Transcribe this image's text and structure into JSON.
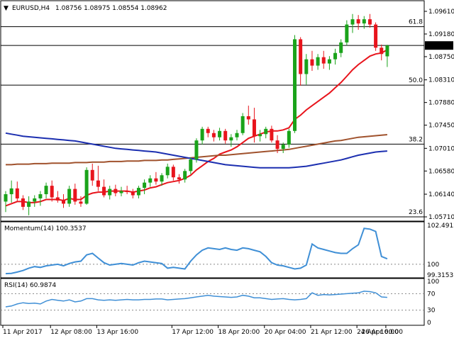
{
  "header": {
    "symbol_label": "EURUSD,H4",
    "ohlc_text": "1.08756 1.08975 1.08554 1.08962"
  },
  "chart_data": [
    {
      "type": "candlestick",
      "title": "EURUSD,H4",
      "ohlc": {
        "open": 1.08756,
        "high": 1.08975,
        "low": 1.08554,
        "close": 1.08962
      },
      "current_price": 1.08962,
      "ylim": [
        1.0571,
        1.0961
      ],
      "y_ticks": [
        "1.09610",
        "1.09180",
        "1.08750",
        "1.08310",
        "1.07880",
        "1.07450",
        "1.07010",
        "1.06580",
        "1.06140",
        "1.05710"
      ],
      "x_ticks": [
        "11 Apr 2017",
        "12 Apr 08:00",
        "13 Apr 16:00",
        "17 Apr 12:00",
        "18 Apr 20:00",
        "20 Apr 04:00",
        "21 Apr 12:00",
        "24 Apr 16:00",
        "26 Apr 00:00"
      ],
      "fib_levels": [
        {
          "label": "61.8",
          "price": 1.0932
        },
        {
          "label": "50.0",
          "price": 1.0821
        },
        {
          "label": "38.2",
          "price": 1.0709
        },
        {
          "label": "23.6",
          "price": 1.0571
        }
      ],
      "candles": [
        [
          1.06,
          1.062,
          1.058,
          1.0614
        ],
        [
          1.0614,
          1.064,
          1.0598,
          1.0625
        ],
        [
          1.0625,
          1.0638,
          1.06,
          1.0606
        ],
        [
          1.0606,
          1.0612,
          1.0584,
          1.059
        ],
        [
          1.059,
          1.061,
          1.0574,
          1.06
        ],
        [
          1.06,
          1.0612,
          1.059,
          1.0606
        ],
        [
          1.0606,
          1.062,
          1.0592,
          1.0614
        ],
        [
          1.0614,
          1.0636,
          1.0606,
          1.063
        ],
        [
          1.063,
          1.064,
          1.06,
          1.0608
        ],
        [
          1.0608,
          1.062,
          1.0598,
          1.0602
        ],
        [
          1.0602,
          1.0614,
          1.0588,
          1.0596
        ],
        [
          1.0596,
          1.063,
          1.059,
          1.0624
        ],
        [
          1.0624,
          1.0634,
          1.0594,
          1.06
        ],
        [
          1.06,
          1.061,
          1.059,
          1.0596
        ],
        [
          1.0596,
          1.0665,
          1.0594,
          1.066
        ],
        [
          1.066,
          1.0672,
          1.063,
          1.064
        ],
        [
          1.064,
          1.0668,
          1.062,
          1.0628
        ],
        [
          1.0628,
          1.0642,
          1.0608,
          1.0612
        ],
        [
          1.0612,
          1.063,
          1.0604,
          1.0624
        ],
        [
          1.0624,
          1.0632,
          1.061,
          1.0616
        ],
        [
          1.0616,
          1.0628,
          1.061,
          1.062
        ],
        [
          1.062,
          1.063,
          1.0614,
          1.0618
        ],
        [
          1.0618,
          1.0624,
          1.0606,
          1.0612
        ],
        [
          1.0612,
          1.063,
          1.0606,
          1.0626
        ],
        [
          1.0626,
          1.0642,
          1.0614,
          1.0636
        ],
        [
          1.0636,
          1.065,
          1.0628,
          1.0644
        ],
        [
          1.0644,
          1.0656,
          1.0632,
          1.0638
        ],
        [
          1.0638,
          1.0654,
          1.063,
          1.065
        ],
        [
          1.065,
          1.0672,
          1.0644,
          1.0666
        ],
        [
          1.0666,
          1.067,
          1.064,
          1.0646
        ],
        [
          1.0646,
          1.0652,
          1.0634,
          1.0642
        ],
        [
          1.0642,
          1.0662,
          1.0636,
          1.0658
        ],
        [
          1.0658,
          1.0684,
          1.0652,
          1.068
        ],
        [
          1.068,
          1.072,
          1.0674,
          1.0716
        ],
        [
          1.0716,
          1.0742,
          1.0708,
          1.0738
        ],
        [
          1.0738,
          1.0742,
          1.0722,
          1.073
        ],
        [
          1.073,
          1.0736,
          1.0714,
          1.0722
        ],
        [
          1.0722,
          1.074,
          1.0716,
          1.0734
        ],
        [
          1.0734,
          1.0738,
          1.071,
          1.0716
        ],
        [
          1.0716,
          1.0728,
          1.0704,
          1.0722
        ],
        [
          1.0722,
          1.0736,
          1.0716,
          1.073
        ],
        [
          1.073,
          1.0768,
          1.0726,
          1.0762
        ],
        [
          1.0762,
          1.0782,
          1.0746,
          1.0756
        ],
        [
          1.0756,
          1.0778,
          1.0712,
          1.0724
        ],
        [
          1.0724,
          1.0736,
          1.0714,
          1.0728
        ],
        [
          1.0728,
          1.0742,
          1.072,
          1.0738
        ],
        [
          1.0738,
          1.0744,
          1.0712,
          1.0716
        ],
        [
          1.0716,
          1.0726,
          1.0692,
          1.07
        ],
        [
          1.07,
          1.0712,
          1.0692,
          1.0708
        ],
        [
          1.0708,
          1.0738,
          1.0702,
          1.0734
        ],
        [
          1.0734,
          1.0916,
          1.073,
          1.0908
        ],
        [
          1.0908,
          1.0912,
          1.082,
          1.0842
        ],
        [
          1.0842,
          1.088,
          1.0822,
          1.087
        ],
        [
          1.087,
          1.0886,
          1.0848,
          1.0858
        ],
        [
          1.0858,
          1.088,
          1.085,
          1.0874
        ],
        [
          1.0874,
          1.0886,
          1.0852,
          1.0862
        ],
        [
          1.0862,
          1.0876,
          1.085,
          1.087
        ],
        [
          1.087,
          1.089,
          1.086,
          1.0882
        ],
        [
          1.0882,
          1.0908,
          1.0874,
          1.0902
        ],
        [
          1.0902,
          1.0944,
          1.0896,
          1.0936
        ],
        [
          1.0936,
          1.0956,
          1.092,
          1.0946
        ],
        [
          1.0946,
          1.0954,
          1.0926,
          1.0938
        ],
        [
          1.0938,
          1.0952,
          1.0928,
          1.0946
        ],
        [
          1.0946,
          1.0956,
          1.093,
          1.0936
        ],
        [
          1.0936,
          1.094,
          1.0886,
          1.0892
        ],
        [
          1.0892,
          1.0898,
          1.0868,
          1.088
        ],
        [
          1.08756,
          1.08975,
          1.08554,
          1.08962
        ]
      ],
      "series": [
        {
          "type": "line",
          "color": "#e8141c",
          "values": [
            1.0592,
            1.0596,
            1.06,
            1.06,
            1.0598,
            1.0598,
            1.06,
            1.0604,
            1.0604,
            1.0604,
            1.0602,
            1.0606,
            1.0604,
            1.0604,
            1.0612,
            1.0616,
            1.0618,
            1.0618,
            1.062,
            1.062,
            1.062,
            1.062,
            1.0618,
            1.062,
            1.0622,
            1.0626,
            1.0628,
            1.0632,
            1.0636,
            1.0638,
            1.064,
            1.0644,
            1.065,
            1.066,
            1.0668,
            1.0676,
            1.0682,
            1.069,
            1.0694,
            1.0698,
            1.0704,
            1.0712,
            1.072,
            1.0724,
            1.0728,
            1.0732,
            1.0734,
            1.0734,
            1.0736,
            1.074,
            1.0756,
            1.0764,
            1.0774,
            1.0782,
            1.079,
            1.0798,
            1.0806,
            1.0816,
            1.0826,
            1.0838,
            1.085,
            1.086,
            1.0868,
            1.0876,
            1.088,
            1.0882,
            1.0888
          ]
        },
        {
          "type": "line",
          "color": "#a0522d",
          "values": [
            1.067,
            1.067,
            1.0671,
            1.0671,
            1.0671,
            1.0672,
            1.0672,
            1.0672,
            1.0673,
            1.0673,
            1.0673,
            1.0673,
            1.0674,
            1.0674,
            1.0674,
            1.0675,
            1.0675,
            1.0675,
            1.0676,
            1.0676,
            1.0676,
            1.0677,
            1.0677,
            1.0677,
            1.0678,
            1.0678,
            1.0678,
            1.0679,
            1.0679,
            1.068,
            1.0681,
            1.0682,
            1.0683,
            1.0684,
            1.0685,
            1.0686,
            1.0687,
            1.0688,
            1.0688,
            1.0689,
            1.069,
            1.0691,
            1.0692,
            1.0693,
            1.0694,
            1.0695,
            1.0696,
            1.0697,
            1.0698,
            1.0699,
            1.0701,
            1.0703,
            1.0705,
            1.0707,
            1.0709,
            1.0711,
            1.0713,
            1.0715,
            1.0716,
            1.0718,
            1.072,
            1.0722,
            1.0723,
            1.0724,
            1.0725,
            1.0726,
            1.0727
          ]
        },
        {
          "type": "line",
          "color": "#1c2fb0",
          "values": [
            1.073,
            1.0728,
            1.0726,
            1.0724,
            1.0723,
            1.0722,
            1.0721,
            1.072,
            1.0719,
            1.0718,
            1.0717,
            1.0716,
            1.0715,
            1.0713,
            1.0711,
            1.0709,
            1.0707,
            1.0705,
            1.0703,
            1.0701,
            1.07,
            1.0699,
            1.0698,
            1.0697,
            1.0696,
            1.0695,
            1.0694,
            1.0692,
            1.069,
            1.0688,
            1.0686,
            1.0684,
            1.0682,
            1.068,
            1.0678,
            1.0676,
            1.0674,
            1.0672,
            1.067,
            1.0669,
            1.0668,
            1.0667,
            1.0666,
            1.0665,
            1.0664,
            1.0664,
            1.0664,
            1.0664,
            1.0664,
            1.0664,
            1.0665,
            1.0666,
            1.0667,
            1.0669,
            1.0671,
            1.0673,
            1.0675,
            1.0677,
            1.0679,
            1.0682,
            1.0685,
            1.0688,
            1.069,
            1.0692,
            1.0694,
            1.0695,
            1.0696
          ]
        }
      ]
    },
    {
      "type": "line",
      "title": "Momentum(14) 100.3537",
      "ylim": [
        99.3153,
        102.4912
      ],
      "y_ticks": [
        "102.4912",
        "100",
        "99.3153"
      ],
      "reference_level": 100,
      "series": [
        {
          "color": "#3f8fd6",
          "values": [
            99.4,
            99.42,
            99.5,
            99.6,
            99.75,
            99.85,
            99.8,
            99.9,
            99.95,
            100.0,
            99.9,
            100.05,
            100.15,
            100.2,
            100.6,
            100.7,
            100.4,
            100.1,
            99.95,
            100.0,
            100.05,
            100.0,
            99.95,
            100.1,
            100.2,
            100.15,
            100.1,
            100.05,
            99.75,
            99.8,
            99.75,
            99.7,
            100.2,
            100.6,
            100.9,
            101.05,
            101.0,
            100.95,
            101.05,
            100.95,
            100.9,
            101.05,
            101.0,
            100.9,
            100.8,
            100.5,
            100.1,
            99.95,
            99.9,
            99.8,
            99.7,
            99.75,
            99.95,
            101.3,
            101.05,
            100.95,
            100.85,
            100.75,
            100.7,
            100.7,
            101.0,
            101.25,
            102.3,
            102.25,
            102.1,
            100.5,
            100.35
          ]
        }
      ]
    },
    {
      "type": "line",
      "title": "RSI(14) 60.9874",
      "ylim": [
        0,
        100
      ],
      "y_ticks": [
        "100",
        "70",
        "30",
        "0"
      ],
      "reference_levels": [
        70,
        30
      ],
      "series": [
        {
          "color": "#3f8fd6",
          "values": [
            38,
            40,
            45,
            48,
            46,
            47,
            45,
            52,
            56,
            54,
            52,
            55,
            50,
            52,
            58,
            58,
            55,
            54,
            55,
            54,
            55,
            56,
            55,
            55,
            56,
            56,
            57,
            57,
            55,
            56,
            57,
            58,
            60,
            62,
            64,
            66,
            64,
            63,
            62,
            61,
            62,
            66,
            64,
            60,
            60,
            58,
            56,
            57,
            58,
            56,
            55,
            56,
            58,
            72,
            66,
            68,
            67,
            68,
            69,
            70,
            71,
            72,
            76,
            75,
            72,
            62,
            61
          ]
        }
      ]
    }
  ]
}
